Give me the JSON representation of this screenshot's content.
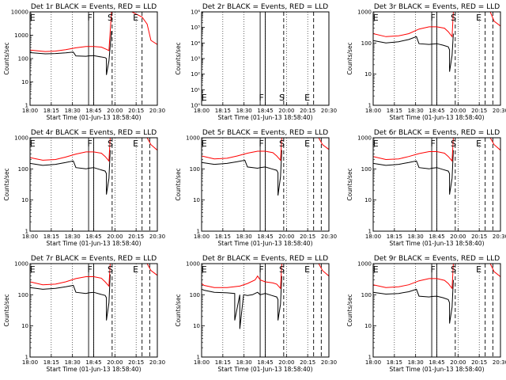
{
  "figure": {
    "title_template": "Det {det} BLACK = Events, RED = LLD",
    "xlabel": "Start Time (01-Jun-13 18:58:40)",
    "ylabel": "Counts/sec"
  },
  "colors": {
    "events": "#000000",
    "lld": "#ff0000",
    "axes": "#000000",
    "background": "#ffffff"
  },
  "chart_data": [
    {
      "type": "line",
      "detector": "1r",
      "title": "Det 1r BLACK = Events, RED = LLD",
      "xlabel": "Start Time (01-Jun-13 18:58:40)",
      "ylabel": "Counts/sec",
      "xticks": [
        "18:00",
        "18:15",
        "18:30",
        "18:45",
        "20:00",
        "20:15",
        "20:30"
      ],
      "yscale": "log",
      "ylim": [
        1,
        10000
      ],
      "yticks": [
        "1",
        "10",
        "100",
        "1000",
        "10000"
      ],
      "markers": [
        {
          "label": "E",
          "x": 0.02
        },
        {
          "label": "F",
          "x": 0.47
        },
        {
          "label": "S",
          "x": 0.63
        },
        {
          "label": "E",
          "x": 0.83
        }
      ],
      "solid_lines": [
        0.46,
        0.5
      ],
      "dashed_lines": [
        0.645,
        0.88
      ],
      "series": [
        {
          "name": "BLACK = Events",
          "x": [
            0,
            0.12,
            0.2,
            0.28,
            0.34,
            0.36,
            0.44,
            0.46,
            0.5,
            0.55,
            0.59,
            0.6,
            0.6,
            0.62,
            0.64
          ],
          "y": [
            180,
            160,
            165,
            175,
            190,
            130,
            125,
            130,
            135,
            120,
            110,
            100,
            20,
            80,
            1500
          ]
        },
        {
          "name": "RED = LLD",
          "x": [
            0,
            0.12,
            0.2,
            0.28,
            0.36,
            0.44,
            0.5,
            0.56,
            0.6,
            0.62,
            0.64,
            0.7,
            0.8,
            0.88,
            0.92,
            0.95,
            1.0
          ],
          "y": [
            230,
            200,
            210,
            240,
            290,
            330,
            330,
            310,
            250,
            220,
            10000,
            10000,
            10000,
            6000,
            3000,
            600,
            400
          ]
        }
      ]
    },
    {
      "type": "line",
      "detector": "2r",
      "title": "Det 2r BLACK = Events, RED = LLD",
      "xlabel": "Start Time (01-Jun-13 18:58:40)",
      "ylabel": "Counts/sec",
      "xticks": [
        "18:00",
        "18:15",
        "18:30",
        "18:45",
        "20:00",
        "20:15",
        "20:30"
      ],
      "yscale": "log",
      "ylim": [
        1,
        1000000
      ],
      "yticks": [
        "10⁰",
        "10¹",
        "10²",
        "10³",
        "10⁴",
        "10⁵",
        "10⁶"
      ],
      "markers": [
        {
          "label": "E",
          "x": 0.02
        },
        {
          "label": "F",
          "x": 0.47
        },
        {
          "label": "S",
          "x": 0.63
        },
        {
          "label": "E",
          "x": 0.83
        }
      ],
      "solid_lines": [
        0.46,
        0.5
      ],
      "dashed_lines": [
        0.645,
        0.88
      ],
      "series": []
    },
    {
      "type": "line",
      "detector": "3r",
      "title": "Det 3r BLACK = Events, RED = LLD",
      "xlabel": "Start Time (01-Jun-13 18:58:40)",
      "ylabel": "Counts/sec",
      "xticks": [
        "18:00",
        "18:15",
        "18:30",
        "18:45",
        "20:00",
        "20:15",
        "20:30"
      ],
      "yscale": "log",
      "ylim": [
        1,
        1000
      ],
      "yticks": [
        "1",
        "10",
        "100",
        "1000"
      ],
      "markers": [
        {
          "label": "E",
          "x": 0.02
        },
        {
          "label": "F",
          "x": 0.47
        },
        {
          "label": "S",
          "x": 0.63
        },
        {
          "label": "E",
          "x": 0.83
        }
      ],
      "solid_lines": [
        0.46,
        0.5
      ],
      "dashed_lines": [
        0.645,
        0.88,
        0.94
      ],
      "series": [
        {
          "name": "BLACK = Events",
          "x": [
            0,
            0.1,
            0.2,
            0.28,
            0.34,
            0.36,
            0.44,
            0.46,
            0.5,
            0.55,
            0.59,
            0.6,
            0.6,
            0.62,
            0.63
          ],
          "y": [
            120,
            100,
            110,
            130,
            160,
            95,
            90,
            92,
            95,
            85,
            75,
            60,
            12,
            40,
            200
          ]
        },
        {
          "name": "RED = LLD",
          "x": [
            0,
            0.1,
            0.2,
            0.28,
            0.36,
            0.44,
            0.5,
            0.56,
            0.59,
            0.62,
            0.63,
            0.7,
            0.8,
            0.88,
            0.92,
            0.95,
            1.0
          ],
          "y": [
            200,
            160,
            170,
            200,
            280,
            330,
            330,
            300,
            230,
            160,
            1000,
            1000,
            1000,
            1000,
            1000,
            500,
            350
          ]
        }
      ]
    },
    {
      "type": "line",
      "detector": "4r",
      "title": "Det 4r BLACK = Events, RED = LLD",
      "xlabel": "Start Time (01-Jun-13 18:58:40)",
      "ylabel": "Counts/sec",
      "xticks": [
        "18:00",
        "18:15",
        "18:30",
        "18:45",
        "20:00",
        "20:15",
        "20:30"
      ],
      "yscale": "log",
      "ylim": [
        1,
        1000
      ],
      "yticks": [
        "1",
        "10",
        "100",
        "1000"
      ],
      "markers": [
        {
          "label": "E",
          "x": 0.02
        },
        {
          "label": "F",
          "x": 0.47
        },
        {
          "label": "S",
          "x": 0.63
        },
        {
          "label": "E",
          "x": 0.83
        }
      ],
      "solid_lines": [
        0.46,
        0.5
      ],
      "dashed_lines": [
        0.645,
        0.88,
        0.94
      ],
      "series": [
        {
          "name": "BLACK = Events",
          "x": [
            0,
            0.1,
            0.2,
            0.28,
            0.34,
            0.36,
            0.44,
            0.46,
            0.5,
            0.55,
            0.59,
            0.6,
            0.6,
            0.62,
            0.63
          ],
          "y": [
            150,
            130,
            140,
            160,
            180,
            110,
            100,
            105,
            110,
            95,
            85,
            70,
            15,
            50,
            400
          ]
        },
        {
          "name": "RED = LLD",
          "x": [
            0,
            0.1,
            0.2,
            0.28,
            0.36,
            0.44,
            0.5,
            0.56,
            0.59,
            0.62,
            0.63,
            0.7,
            0.8,
            0.88,
            0.92,
            0.95,
            1.0
          ],
          "y": [
            230,
            190,
            200,
            240,
            300,
            350,
            350,
            320,
            250,
            180,
            1000,
            1000,
            1000,
            1000,
            1000,
            600,
            400
          ]
        }
      ]
    },
    {
      "type": "line",
      "detector": "5r",
      "title": "Det 5r BLACK = Events, RED = LLD",
      "xlabel": "Start Time (01-Jun-13 18:58:40)",
      "ylabel": "Counts/sec",
      "xticks": [
        "18:00",
        "18:15",
        "18:30",
        "18:45",
        "20:00",
        "20:15",
        "20:30"
      ],
      "yscale": "log",
      "ylim": [
        1,
        1000
      ],
      "yticks": [
        "1",
        "10",
        "100",
        "1000"
      ],
      "markers": [
        {
          "label": "E",
          "x": 0.02
        },
        {
          "label": "F",
          "x": 0.47
        },
        {
          "label": "S",
          "x": 0.63
        },
        {
          "label": "E",
          "x": 0.83
        }
      ],
      "solid_lines": [
        0.46,
        0.5
      ],
      "dashed_lines": [
        0.645,
        0.88,
        0.94
      ],
      "series": [
        {
          "name": "BLACK = Events",
          "x": [
            0,
            0.1,
            0.2,
            0.28,
            0.34,
            0.36,
            0.44,
            0.46,
            0.5,
            0.55,
            0.59,
            0.6,
            0.6,
            0.62,
            0.63
          ],
          "y": [
            160,
            140,
            150,
            170,
            190,
            115,
            105,
            110,
            115,
            100,
            90,
            75,
            14,
            55,
            400
          ]
        },
        {
          "name": "RED = LLD",
          "x": [
            0,
            0.1,
            0.2,
            0.28,
            0.36,
            0.44,
            0.5,
            0.56,
            0.59,
            0.62,
            0.63,
            0.7,
            0.8,
            0.88,
            0.92,
            0.95,
            1.0
          ],
          "y": [
            260,
            210,
            220,
            260,
            320,
            370,
            370,
            330,
            260,
            190,
            1000,
            1000,
            1000,
            1000,
            1000,
            600,
            420
          ]
        }
      ]
    },
    {
      "type": "line",
      "detector": "6r",
      "title": "Det 6r BLACK = Events, RED = LLD",
      "xlabel": "Start Time (01-Jun-13 18:58:40)",
      "ylabel": "Counts/sec",
      "xticks": [
        "18:00",
        "18:15",
        "18:30",
        "18:45",
        "20:00",
        "20:15",
        "20:30"
      ],
      "yscale": "log",
      "ylim": [
        1,
        1000
      ],
      "yticks": [
        "1",
        "10",
        "100",
        "1000"
      ],
      "markers": [
        {
          "label": "E",
          "x": 0.02
        },
        {
          "label": "F",
          "x": 0.47
        },
        {
          "label": "S",
          "x": 0.63
        },
        {
          "label": "E",
          "x": 0.83
        }
      ],
      "solid_lines": [
        0.46,
        0.5
      ],
      "dashed_lines": [
        0.645,
        0.88,
        0.94
      ],
      "series": [
        {
          "name": "BLACK = Events",
          "x": [
            0,
            0.1,
            0.2,
            0.28,
            0.34,
            0.36,
            0.44,
            0.46,
            0.5,
            0.55,
            0.59,
            0.6,
            0.6,
            0.62,
            0.63
          ],
          "y": [
            150,
            130,
            140,
            160,
            180,
            110,
            100,
            105,
            110,
            95,
            85,
            70,
            15,
            50,
            400
          ]
        },
        {
          "name": "RED = LLD",
          "x": [
            0,
            0.1,
            0.2,
            0.28,
            0.36,
            0.44,
            0.5,
            0.56,
            0.59,
            0.62,
            0.63,
            0.7,
            0.8,
            0.88,
            0.92,
            0.95,
            1.0
          ],
          "y": [
            250,
            200,
            210,
            250,
            310,
            360,
            360,
            320,
            250,
            180,
            1000,
            1000,
            1000,
            1000,
            1000,
            600,
            400
          ]
        }
      ]
    },
    {
      "type": "line",
      "detector": "7r",
      "title": "Det 7r BLACK = Events, RED = LLD",
      "xlabel": "Start Time (01-Jun-13 18:58:40)",
      "ylabel": "Counts/sec",
      "xticks": [
        "18:00",
        "18:15",
        "18:30",
        "18:45",
        "20:00",
        "20:15",
        "20:30"
      ],
      "yscale": "log",
      "ylim": [
        1,
        1000
      ],
      "yticks": [
        "1",
        "10",
        "100",
        "1000"
      ],
      "markers": [
        {
          "label": "E",
          "x": 0.02
        },
        {
          "label": "F",
          "x": 0.47
        },
        {
          "label": "S",
          "x": 0.63
        },
        {
          "label": "E",
          "x": 0.83
        }
      ],
      "solid_lines": [
        0.46,
        0.5
      ],
      "dashed_lines": [
        0.645,
        0.88,
        0.94
      ],
      "series": [
        {
          "name": "BLACK = Events",
          "x": [
            0,
            0.1,
            0.2,
            0.28,
            0.34,
            0.36,
            0.44,
            0.46,
            0.5,
            0.55,
            0.59,
            0.6,
            0.6,
            0.62,
            0.63
          ],
          "y": [
            170,
            150,
            160,
            180,
            200,
            120,
            110,
            115,
            120,
            105,
            95,
            80,
            15,
            55,
            450
          ]
        },
        {
          "name": "RED = LLD",
          "x": [
            0,
            0.1,
            0.2,
            0.28,
            0.36,
            0.44,
            0.5,
            0.56,
            0.59,
            0.62,
            0.63,
            0.7,
            0.8,
            0.88,
            0.92,
            0.95,
            1.0
          ],
          "y": [
            260,
            210,
            220,
            260,
            330,
            380,
            380,
            340,
            260,
            190,
            1000,
            1000,
            1000,
            1000,
            1000,
            600,
            420
          ]
        }
      ]
    },
    {
      "type": "line",
      "detector": "8r",
      "title": "Det 8r BLACK = Events, RED = LLD",
      "xlabel": "Start Time (01-Jun-13 18:58:40)",
      "ylabel": "Counts/sec",
      "xticks": [
        "18:00",
        "18:15",
        "18:30",
        "18:45",
        "20:00",
        "20:15",
        "20:30"
      ],
      "yscale": "log",
      "ylim": [
        1,
        1000
      ],
      "yticks": [
        "1",
        "10",
        "100",
        "1000"
      ],
      "markers": [
        {
          "label": "E",
          "x": 0.02
        },
        {
          "label": "F",
          "x": 0.47
        },
        {
          "label": "S",
          "x": 0.63
        },
        {
          "label": "E",
          "x": 0.83
        }
      ],
      "solid_lines": [
        0.46,
        0.5
      ],
      "dashed_lines": [
        0.645,
        0.88,
        0.94
      ],
      "series": [
        {
          "name": "BLACK = Events",
          "x": [
            0,
            0.02,
            0.1,
            0.2,
            0.26,
            0.26,
            0.3,
            0.3,
            0.33,
            0.36,
            0.4,
            0.42,
            0.44,
            0.46,
            0.5,
            0.55,
            0.59,
            0.6,
            0.6,
            0.62,
            0.63
          ],
          "y": [
            150,
            140,
            120,
            115,
            110,
            15,
            100,
            8,
            100,
            95,
            100,
            110,
            120,
            100,
            110,
            95,
            85,
            70,
            15,
            50,
            400
          ]
        },
        {
          "name": "RED = LLD",
          "x": [
            0,
            0.02,
            0.1,
            0.2,
            0.3,
            0.36,
            0.42,
            0.44,
            0.46,
            0.5,
            0.56,
            0.59,
            0.62,
            0.63,
            0.7,
            0.8,
            0.88,
            0.92,
            0.95,
            1.0
          ],
          "y": [
            230,
            200,
            170,
            170,
            190,
            230,
            300,
            400,
            300,
            260,
            240,
            220,
            160,
            1000,
            1000,
            1000,
            1000,
            1000,
            600,
            400
          ]
        }
      ]
    },
    {
      "type": "line",
      "detector": "9r",
      "title": "Det 9r BLACK = Events, RED = LLD",
      "xlabel": "Start Time (01-Jun-13 18:58:40)",
      "ylabel": "Counts/sec",
      "xticks": [
        "18:00",
        "18:15",
        "18:30",
        "18:45",
        "20:00",
        "20:15",
        "20:30"
      ],
      "yscale": "log",
      "ylim": [
        1,
        1000
      ],
      "yticks": [
        "1",
        "10",
        "100",
        "1000"
      ],
      "markers": [
        {
          "label": "E",
          "x": 0.02
        },
        {
          "label": "F",
          "x": 0.47
        },
        {
          "label": "S",
          "x": 0.63
        },
        {
          "label": "E",
          "x": 0.83
        }
      ],
      "solid_lines": [
        0.46,
        0.5
      ],
      "dashed_lines": [
        0.645,
        0.88,
        0.94
      ],
      "series": [
        {
          "name": "BLACK = Events",
          "x": [
            0,
            0.1,
            0.2,
            0.28,
            0.34,
            0.36,
            0.44,
            0.46,
            0.5,
            0.55,
            0.59,
            0.6,
            0.6,
            0.62,
            0.63
          ],
          "y": [
            120,
            105,
            110,
            125,
            150,
            90,
            85,
            88,
            90,
            80,
            70,
            55,
            12,
            40,
            300
          ]
        },
        {
          "name": "RED = LLD",
          "x": [
            0,
            0.1,
            0.2,
            0.28,
            0.36,
            0.44,
            0.5,
            0.56,
            0.59,
            0.62,
            0.63,
            0.7,
            0.8,
            0.88,
            0.92,
            0.95,
            1.0
          ],
          "y": [
            210,
            170,
            180,
            210,
            280,
            330,
            330,
            290,
            230,
            160,
            1000,
            1000,
            1000,
            1000,
            1000,
            550,
            380
          ]
        }
      ]
    }
  ]
}
